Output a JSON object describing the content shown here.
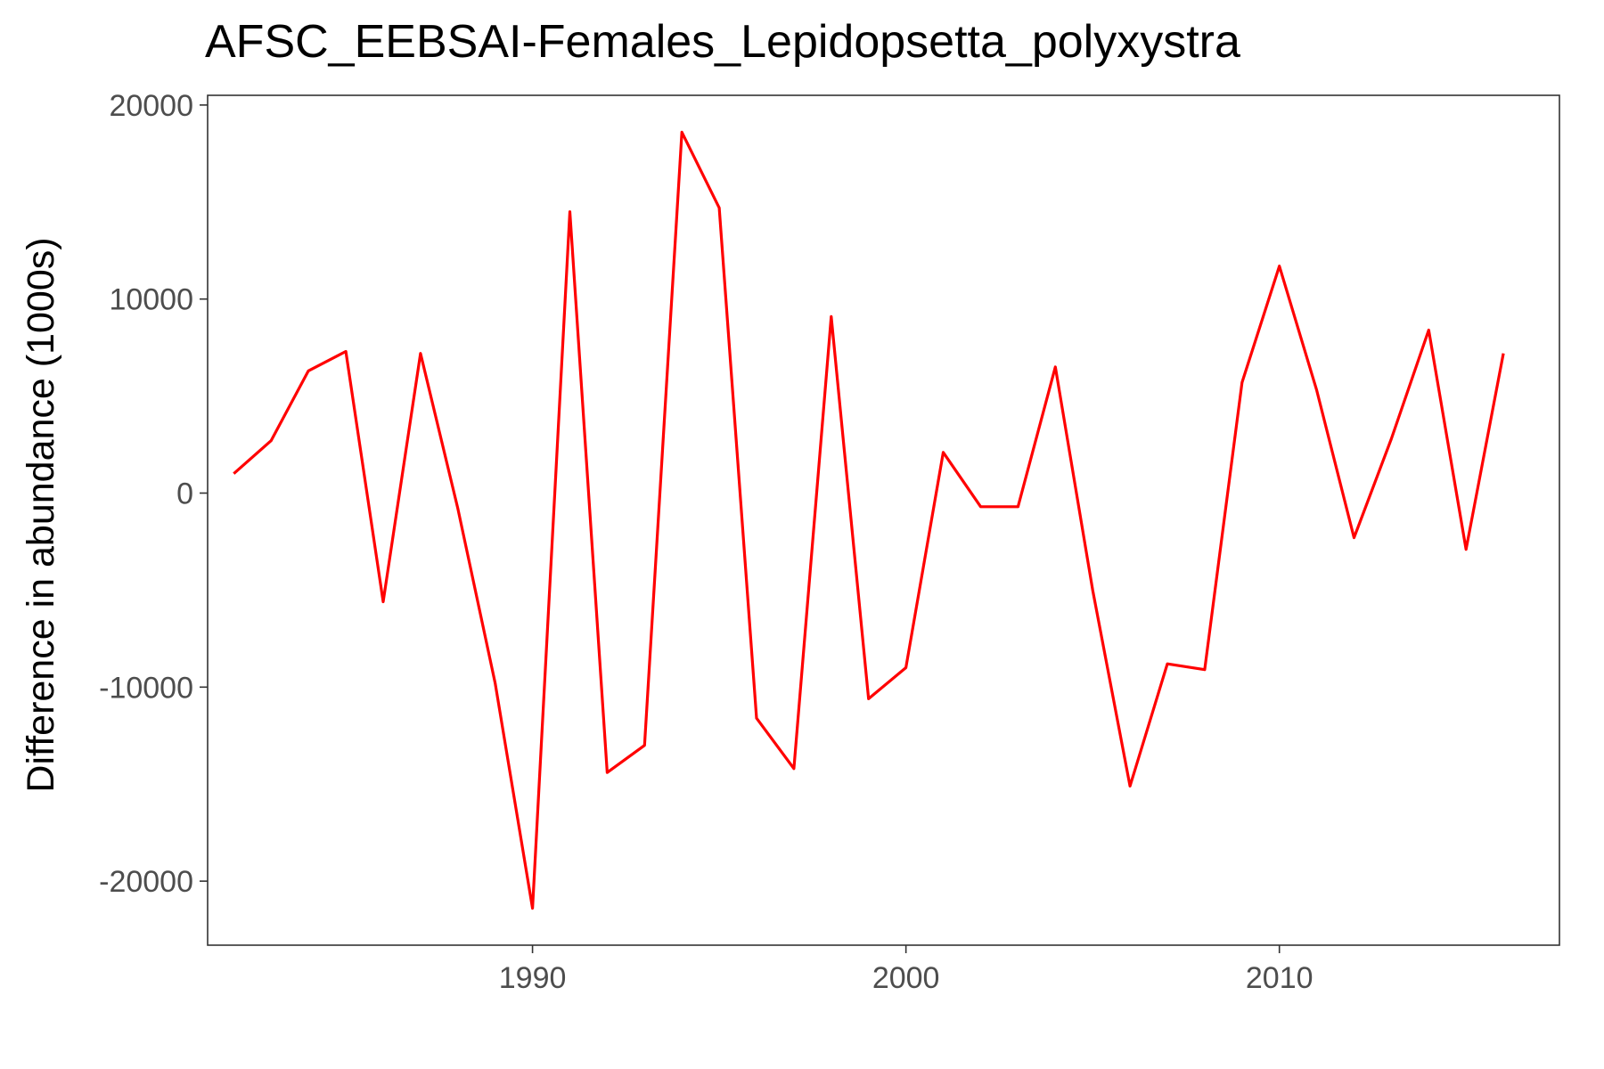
{
  "chart_data": {
    "type": "line",
    "title": "AFSC_EEBSAI-Females_Lepidopsetta_polyxystra",
    "xlabel": "",
    "ylabel": "Difference in abundance (1000s)",
    "xlim": [
      1981.3,
      2017.5
    ],
    "ylim": [
      -23300,
      20500
    ],
    "x_ticks": [
      1990,
      2000,
      2010
    ],
    "y_ticks": [
      -20000,
      -10000,
      0,
      10000,
      20000
    ],
    "x_tick_labels": [
      "1990",
      "2000",
      "2010"
    ],
    "y_tick_labels": [
      "-20000",
      "-10000",
      "0",
      "10000",
      "20000"
    ],
    "grid": false,
    "legend": "none",
    "series": [
      {
        "color": "#ff0000",
        "x": [
          1982,
          1983,
          1984,
          1985,
          1986,
          1987,
          1988,
          1989,
          1990,
          1991,
          1992,
          1993,
          1994,
          1995,
          1996,
          1997,
          1998,
          1999,
          2000,
          2001,
          2002,
          2003,
          2004,
          2005,
          2006,
          2007,
          2008,
          2009,
          2010,
          2011,
          2012,
          2013,
          2014,
          2015,
          2016
        ],
        "values": [
          1000,
          2700,
          6300,
          7300,
          -5600,
          7200,
          -800,
          -9800,
          -21400,
          14500,
          -14400,
          -13000,
          18600,
          14700,
          -11600,
          -14200,
          9100,
          -10600,
          -9000,
          2100,
          -700,
          -700,
          6500,
          -5000,
          -15100,
          -8800,
          -9100,
          5700,
          11700,
          5300,
          -2300,
          2800,
          8400,
          -2900,
          7200
        ]
      }
    ]
  }
}
